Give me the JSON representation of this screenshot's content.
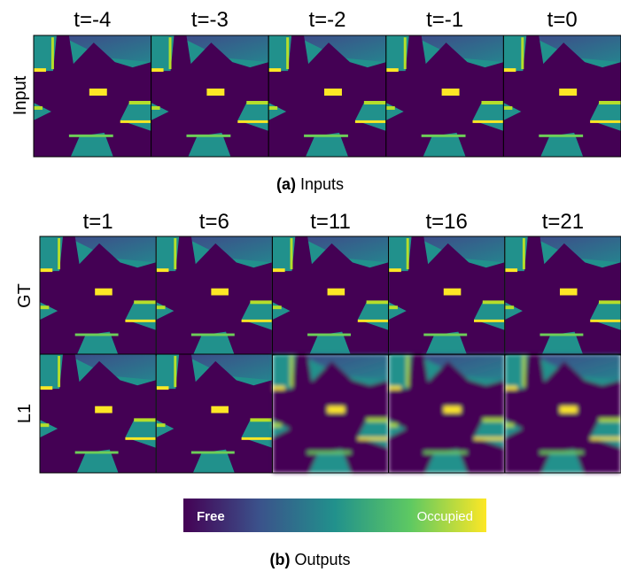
{
  "inputs": {
    "columns": [
      "t=-4",
      "t=-3",
      "t=-2",
      "t=-1",
      "t=0"
    ],
    "row_label": "Input",
    "caption": {
      "label": "(a)",
      "text": "Inputs"
    }
  },
  "outputs": {
    "columns": [
      "t=1",
      "t=6",
      "t=11",
      "t=16",
      "t=21"
    ],
    "rows": [
      "GT",
      "L1"
    ],
    "caption": {
      "label": "(b)",
      "text": "Outputs"
    }
  },
  "colorbar": {
    "low": "Free",
    "high": "Occupied"
  }
}
